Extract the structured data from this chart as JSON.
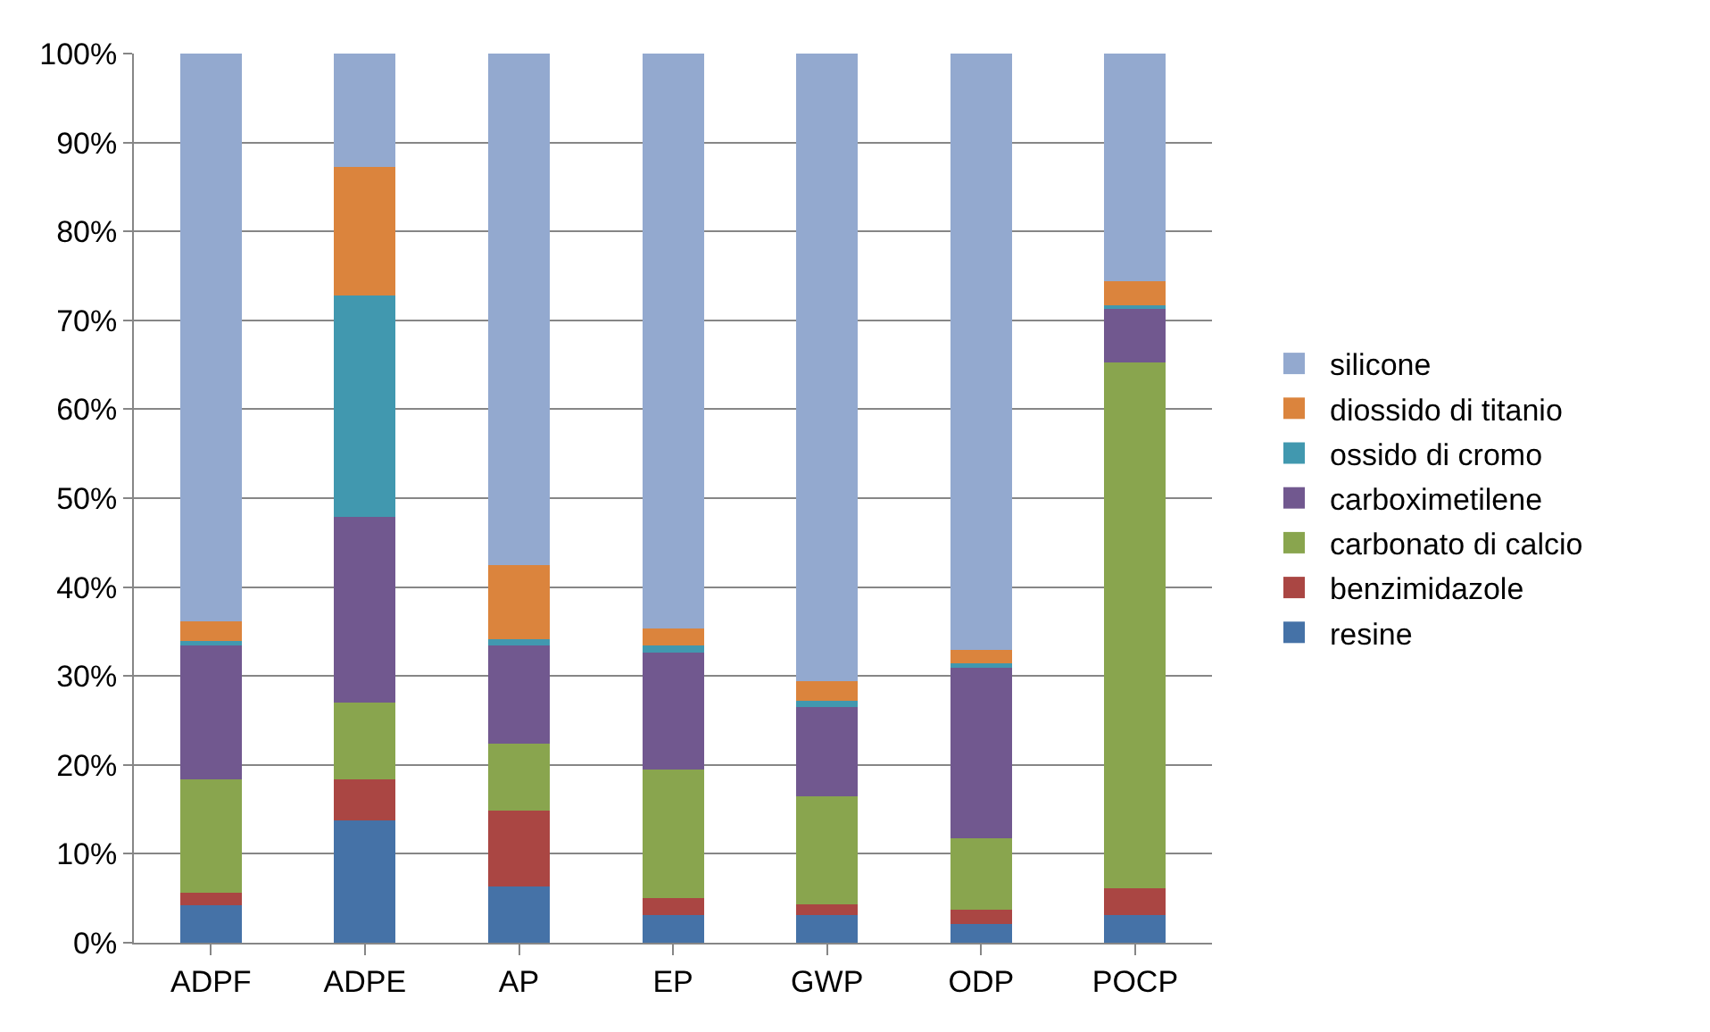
{
  "chart_data": {
    "type": "bar",
    "stacked": true,
    "categories": [
      "ADPF",
      "ADPE",
      "AP",
      "EP",
      "GWP",
      "ODP",
      "POCP"
    ],
    "series": [
      {
        "name": "resine",
        "color": "#4572a7",
        "values": [
          4.2,
          13.8,
          6.3,
          3.1,
          3.1,
          2.1,
          3.1
        ]
      },
      {
        "name": "benzimidazole",
        "color": "#aa4643",
        "values": [
          1.4,
          4.6,
          8.6,
          1.9,
          1.2,
          1.6,
          3.0
        ]
      },
      {
        "name": "carbonato di calcio",
        "color": "#89a54e",
        "values": [
          12.8,
          8.6,
          7.5,
          14.5,
          12.2,
          8.0,
          59.2
        ]
      },
      {
        "name": "carboximetilene",
        "color": "#71588f",
        "values": [
          15.0,
          20.9,
          11.0,
          13.1,
          10.0,
          19.3,
          6.1
        ]
      },
      {
        "name": "ossido di cromo",
        "color": "#4198af",
        "values": [
          0.5,
          24.9,
          0.7,
          0.8,
          0.7,
          0.4,
          0.3
        ]
      },
      {
        "name": "diossido di titanio",
        "color": "#db843d",
        "values": [
          2.2,
          14.4,
          8.4,
          1.9,
          2.2,
          1.5,
          2.7
        ]
      },
      {
        "name": "silicone",
        "color": "#93a9cf",
        "values": [
          63.9,
          12.8,
          57.5,
          64.7,
          70.6,
          67.1,
          25.6
        ]
      }
    ],
    "ylim": [
      0,
      100
    ],
    "yticks": [
      {
        "value": 0,
        "label": "0%"
      },
      {
        "value": 10,
        "label": "10%"
      },
      {
        "value": 20,
        "label": "20%"
      },
      {
        "value": 30,
        "label": "30%"
      },
      {
        "value": 40,
        "label": "40%"
      },
      {
        "value": 50,
        "label": "50%"
      },
      {
        "value": 60,
        "label": "60%"
      },
      {
        "value": 70,
        "label": "70%"
      },
      {
        "value": 80,
        "label": "80%"
      },
      {
        "value": 90,
        "label": "90%"
      },
      {
        "value": 100,
        "label": "100%"
      }
    ],
    "grid": "y",
    "legend": "right"
  }
}
